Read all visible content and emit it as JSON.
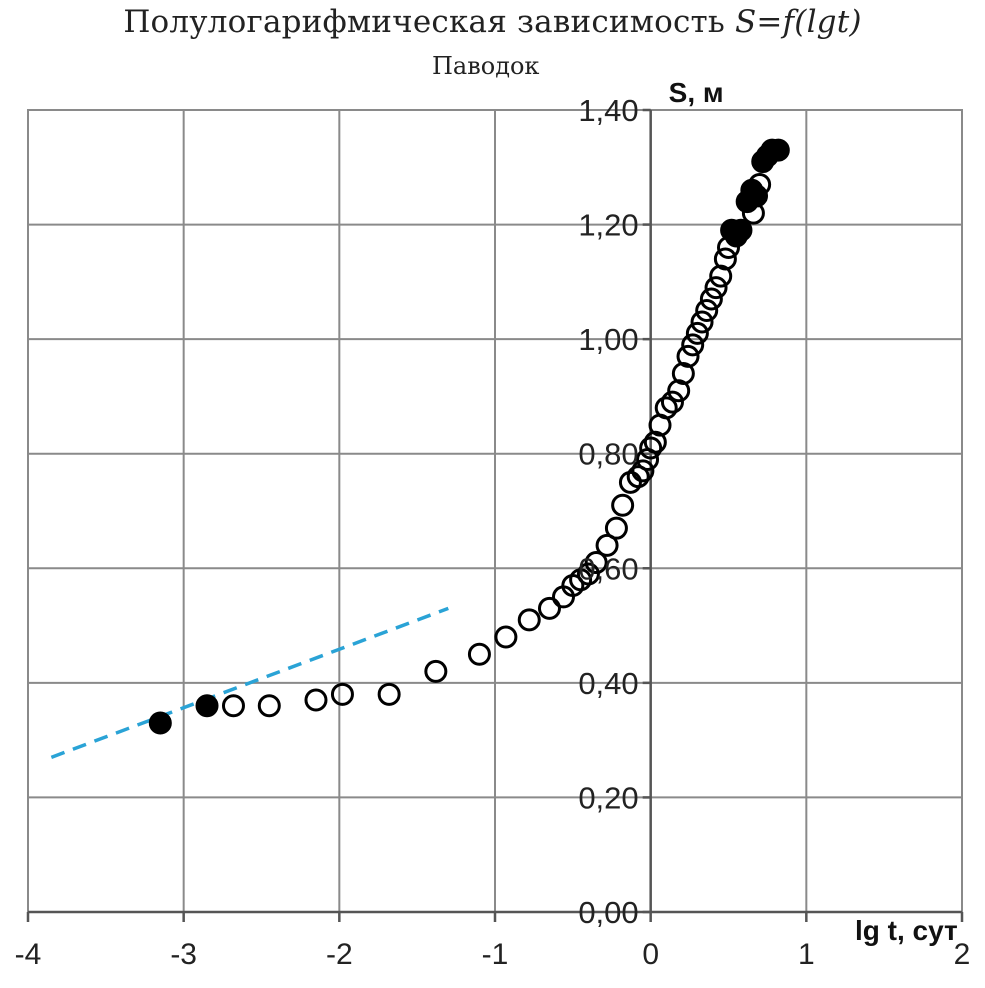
{
  "title_prefix": "Полулогарифмическая зависимость ",
  "title_formula": "S=f(lgt)",
  "subtitle": "Паводок",
  "chart_data": {
    "type": "scatter",
    "title": "Полулогарифмическая зависимость S=f(lgt)",
    "subtitle": "Паводок",
    "xlabel": "lg t, сут",
    "ylabel": "S, м",
    "xlim": [
      -4,
      2
    ],
    "ylim": [
      0,
      1.4
    ],
    "x_ticks": [
      "-4",
      "-3",
      "-2",
      "-1",
      "0",
      "1",
      "2"
    ],
    "y_ticks": [
      "0,00",
      "0,20",
      "0,40",
      "0,60",
      "0,80",
      "1,00",
      "1,20",
      "1,40"
    ],
    "grid": true,
    "series": [
      {
        "marker": "filled-circle",
        "color": "#000000",
        "points": [
          [
            -3.15,
            0.33
          ],
          [
            -2.85,
            0.36
          ],
          [
            0.52,
            1.19
          ],
          [
            0.55,
            1.18
          ],
          [
            0.58,
            1.19
          ],
          [
            0.62,
            1.24
          ],
          [
            0.65,
            1.26
          ],
          [
            0.68,
            1.25
          ],
          [
            0.72,
            1.31
          ],
          [
            0.75,
            1.32
          ],
          [
            0.78,
            1.33
          ],
          [
            0.82,
            1.33
          ]
        ]
      },
      {
        "marker": "open-circle",
        "color": "#000000",
        "points": [
          [
            -2.68,
            0.36
          ],
          [
            -2.45,
            0.36
          ],
          [
            -2.15,
            0.37
          ],
          [
            -1.98,
            0.38
          ],
          [
            -1.68,
            0.38
          ],
          [
            -1.38,
            0.42
          ],
          [
            -1.1,
            0.45
          ],
          [
            -0.93,
            0.48
          ],
          [
            -0.78,
            0.51
          ],
          [
            -0.65,
            0.53
          ],
          [
            -0.56,
            0.55
          ],
          [
            -0.5,
            0.57
          ],
          [
            -0.45,
            0.58
          ],
          [
            -0.4,
            0.59
          ],
          [
            -0.35,
            0.61
          ],
          [
            -0.28,
            0.64
          ],
          [
            -0.22,
            0.67
          ],
          [
            -0.18,
            0.71
          ],
          [
            -0.13,
            0.75
          ],
          [
            -0.08,
            0.76
          ],
          [
            -0.05,
            0.77
          ],
          [
            -0.02,
            0.79
          ],
          [
            0.0,
            0.81
          ],
          [
            0.03,
            0.82
          ],
          [
            0.06,
            0.85
          ],
          [
            0.1,
            0.88
          ],
          [
            0.14,
            0.89
          ],
          [
            0.18,
            0.91
          ],
          [
            0.21,
            0.94
          ],
          [
            0.24,
            0.97
          ],
          [
            0.27,
            0.99
          ],
          [
            0.3,
            1.01
          ],
          [
            0.33,
            1.03
          ],
          [
            0.36,
            1.05
          ],
          [
            0.39,
            1.07
          ],
          [
            0.42,
            1.09
          ],
          [
            0.45,
            1.11
          ],
          [
            0.48,
            1.14
          ],
          [
            0.5,
            1.16
          ],
          [
            0.66,
            1.22
          ],
          [
            0.7,
            1.27
          ]
        ]
      }
    ],
    "trendline": {
      "style": "dashed",
      "color": "#2aa3d6",
      "x": [
        -3.85,
        -1.3
      ],
      "y": [
        0.27,
        0.53
      ]
    }
  }
}
